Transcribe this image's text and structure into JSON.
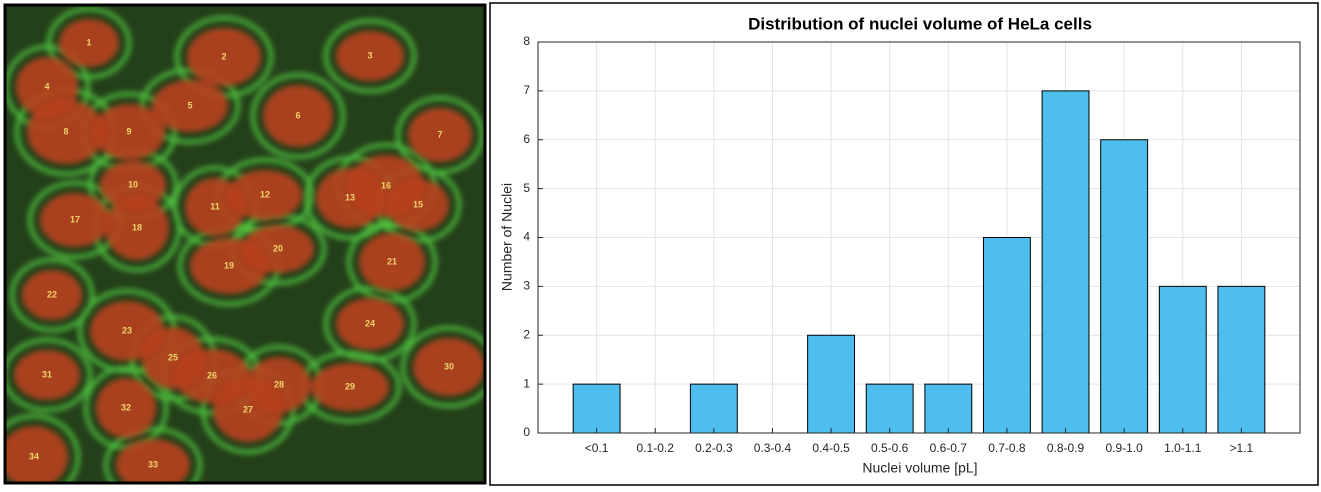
{
  "image": {
    "labels": [
      "1",
      "2",
      "3",
      "4",
      "5",
      "6",
      "7",
      "8",
      "9",
      "10",
      "11",
      "12",
      "13",
      "15",
      "16",
      "17",
      "18",
      "19",
      "20",
      "21",
      "22",
      "23",
      "24",
      "25",
      "26",
      "27",
      "28",
      "29",
      "30",
      "31",
      "32",
      "33",
      "34"
    ]
  },
  "chart_data": {
    "type": "bar",
    "title": "Distribution of nuclei volume of HeLa cells",
    "x_label": "Nuclei volume [pL]",
    "y_label": "Number of Nuclei",
    "categories": [
      "<0.1",
      "0.1-0.2",
      "0.2-0.3",
      "0.3-0.4",
      "0.4-0.5",
      "0.5-0.6",
      "0.6-0.7",
      "0.7-0.8",
      "0.8-0.9",
      "0.9-1.0",
      "1.0-1.1",
      ">1.1"
    ],
    "values": [
      1,
      0,
      1,
      0,
      2,
      1,
      1,
      4,
      7,
      6,
      3,
      3
    ],
    "color": "#4dbeee",
    "ylim": [
      0,
      8
    ],
    "yticks": [
      0,
      1,
      2,
      3,
      4,
      5,
      6,
      7,
      8
    ],
    "grid": true
  }
}
